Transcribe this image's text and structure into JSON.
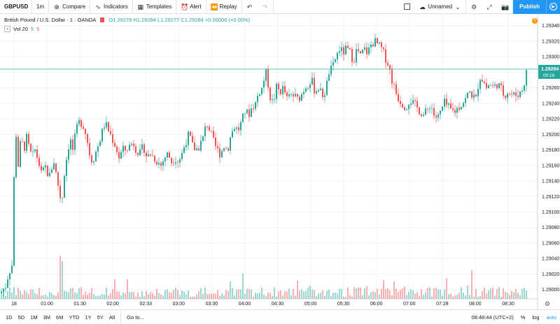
{
  "toolbar": {
    "symbol": "GBPUSD",
    "interval": "1m",
    "compare": "Compare",
    "indicators": "Indicators",
    "templates": "Templates",
    "alert": "Alert",
    "replay": "Replay",
    "layout_name": "Unnamed",
    "publish": "Publish"
  },
  "legend": {
    "title": "British Pound / U.S. Dollar · 1 · OANDA",
    "ohlc": "O1.29278 H1.29284 L1.29277 C1.29284 +0.00006 (+0.00%)",
    "vol_name": "Vol 20",
    "vol_v1": "5",
    "vol_v2": "5"
  },
  "badge": "!",
  "price_label": {
    "price": "1.29284",
    "countdown": "00:16"
  },
  "bottom": {
    "ranges": [
      "1D",
      "5D",
      "1M",
      "3M",
      "6M",
      "YTD",
      "1Y",
      "5Y",
      "All"
    ],
    "goto": "Go to...",
    "time": "08:48:44 (UTC+2)",
    "pct": "%",
    "log": "log",
    "auto": "auto"
  },
  "colors": {
    "up": "#26a69a",
    "down": "#ef5350",
    "accent": "#2196f3"
  },
  "chart_data": {
    "type": "candlestick",
    "x_tick_labels": [
      "18",
      "01:00",
      "01:30",
      "02:00",
      "02:33",
      "03:00",
      "03:30",
      "04:00",
      "04:30",
      "05:00",
      "05:30",
      "06:00",
      "07:00",
      "07:28",
      "08:00",
      "08:30"
    ],
    "y_tick_labels": [
      "1.29340",
      "1.29320",
      "1.29300",
      "1.29280",
      "1.29260",
      "1.29240",
      "1.29220",
      "1.29200",
      "1.29180",
      "1.29160",
      "1.29140",
      "1.29120",
      "1.29100",
      "1.29080",
      "1.29060",
      "1.29040",
      "1.29020",
      "1.29000"
    ],
    "ylim": [
      1.28988,
      1.29355
    ],
    "last_price": 1.29284,
    "close_path": [
      [
        0,
        1.28995
      ],
      [
        4,
        1.29
      ],
      [
        8,
        1.29005
      ],
      [
        12,
        1.2902
      ],
      [
        16,
        1.2903
      ],
      [
        19,
        1.29035
      ],
      [
        21,
        1.2925
      ],
      [
        23,
        1.292
      ],
      [
        26,
        1.2916
      ],
      [
        30,
        1.29195
      ],
      [
        34,
        1.2918
      ],
      [
        38,
        1.29195
      ],
      [
        42,
        1.2918
      ],
      [
        46,
        1.2917
      ],
      [
        50,
        1.2918
      ],
      [
        55,
        1.29165
      ],
      [
        60,
        1.29145
      ],
      [
        64,
        1.2916
      ],
      [
        68,
        1.2915
      ],
      [
        72,
        1.29145
      ],
      [
        76,
        1.2917
      ],
      [
        80,
        1.2915
      ],
      [
        84,
        1.2913
      ],
      [
        88,
        1.2911
      ],
      [
        92,
        1.2915
      ],
      [
        96,
        1.29175
      ],
      [
        100,
        1.29195
      ],
      [
        104,
        1.2918
      ],
      [
        108,
        1.292
      ],
      [
        112,
        1.29215
      ],
      [
        116,
        1.29215
      ],
      [
        120,
        1.2921
      ],
      [
        124,
        1.29195
      ],
      [
        128,
        1.29175
      ],
      [
        132,
        1.29165
      ],
      [
        136,
        1.29175
      ],
      [
        140,
        1.29185
      ],
      [
        145,
        1.292
      ],
      [
        150,
        1.29215
      ],
      [
        155,
        1.29205
      ],
      [
        160,
        1.29195
      ],
      [
        165,
        1.29185
      ],
      [
        170,
        1.2917
      ],
      [
        175,
        1.2918
      ],
      [
        180,
        1.2918
      ],
      [
        185,
        1.29185
      ],
      [
        190,
        1.2919
      ],
      [
        195,
        1.2918
      ],
      [
        200,
        1.29175
      ],
      [
        205,
        1.29185
      ],
      [
        210,
        1.2917
      ],
      [
        215,
        1.29175
      ],
      [
        220,
        1.2917
      ],
      [
        225,
        1.29165
      ],
      [
        230,
        1.2916
      ],
      [
        235,
        1.2917
      ],
      [
        240,
        1.29175
      ],
      [
        245,
        1.29165
      ],
      [
        250,
        1.2917
      ],
      [
        255,
        1.29165
      ],
      [
        260,
        1.29175
      ],
      [
        265,
        1.2919
      ],
      [
        270,
        1.292
      ],
      [
        275,
        1.29185
      ],
      [
        280,
        1.2918
      ],
      [
        285,
        1.29185
      ],
      [
        290,
        1.29195
      ],
      [
        295,
        1.29215
      ],
      [
        300,
        1.29205
      ],
      [
        305,
        1.2919
      ],
      [
        310,
        1.2918
      ],
      [
        315,
        1.29175
      ],
      [
        320,
        1.29185
      ],
      [
        325,
        1.2918
      ],
      [
        330,
        1.292
      ],
      [
        335,
        1.2921
      ],
      [
        340,
        1.29205
      ],
      [
        345,
        1.29215
      ],
      [
        350,
        1.2923
      ],
      [
        355,
        1.29225
      ],
      [
        360,
        1.29235
      ],
      [
        365,
        1.2924
      ],
      [
        370,
        1.29255
      ],
      [
        375,
        1.2926
      ],
      [
        378,
        1.29275
      ],
      [
        381,
        1.2928
      ],
      [
        385,
        1.2925
      ],
      [
        390,
        1.2924
      ],
      [
        395,
        1.2926
      ],
      [
        400,
        1.29255
      ],
      [
        405,
        1.2926
      ],
      [
        410,
        1.29245
      ],
      [
        415,
        1.2925
      ],
      [
        420,
        1.2925
      ],
      [
        425,
        1.29245
      ],
      [
        430,
        1.2925
      ],
      [
        435,
        1.2926
      ],
      [
        440,
        1.29265
      ],
      [
        445,
        1.2927
      ],
      [
        450,
        1.29255
      ],
      [
        455,
        1.2926
      ],
      [
        460,
        1.2925
      ],
      [
        465,
        1.29255
      ],
      [
        470,
        1.2928
      ],
      [
        475,
        1.29285
      ],
      [
        480,
        1.293
      ],
      [
        485,
        1.2931
      ],
      [
        490,
        1.29305
      ],
      [
        495,
        1.2931
      ],
      [
        500,
        1.29305
      ],
      [
        505,
        1.29295
      ],
      [
        510,
        1.2931
      ],
      [
        515,
        1.293
      ],
      [
        520,
        1.2931
      ],
      [
        525,
        1.29305
      ],
      [
        530,
        1.29315
      ],
      [
        535,
        1.2932
      ],
      [
        540,
        1.29315
      ],
      [
        545,
        1.2931
      ],
      [
        550,
        1.293
      ],
      [
        555,
        1.2929
      ],
      [
        560,
        1.2927
      ],
      [
        565,
        1.29255
      ],
      [
        570,
        1.29245
      ],
      [
        575,
        1.2924
      ],
      [
        580,
        1.29235
      ],
      [
        585,
        1.29245
      ],
      [
        590,
        1.2924
      ],
      [
        595,
        1.29235
      ],
      [
        600,
        1.2923
      ],
      [
        605,
        1.29225
      ],
      [
        610,
        1.2923
      ],
      [
        615,
        1.2924
      ],
      [
        620,
        1.29225
      ],
      [
        625,
        1.2922
      ],
      [
        630,
        1.2923
      ],
      [
        635,
        1.2924
      ],
      [
        640,
        1.29235
      ],
      [
        645,
        1.2923
      ],
      [
        650,
        1.2923
      ],
      [
        655,
        1.29235
      ],
      [
        660,
        1.2924
      ],
      [
        665,
        1.29245
      ],
      [
        670,
        1.29255
      ],
      [
        675,
        1.2925
      ],
      [
        680,
        1.29245
      ],
      [
        685,
        1.29275
      ],
      [
        690,
        1.2927
      ],
      [
        695,
        1.2926
      ],
      [
        700,
        1.29265
      ],
      [
        705,
        1.2926
      ],
      [
        710,
        1.29265
      ],
      [
        715,
        1.2926
      ],
      [
        720,
        1.2925
      ],
      [
        725,
        1.29255
      ],
      [
        730,
        1.29252
      ],
      [
        735,
        1.2925
      ],
      [
        740,
        1.29252
      ],
      [
        745,
        1.29255
      ],
      [
        750,
        1.2927
      ],
      [
        753,
        1.29284
      ]
    ]
  }
}
